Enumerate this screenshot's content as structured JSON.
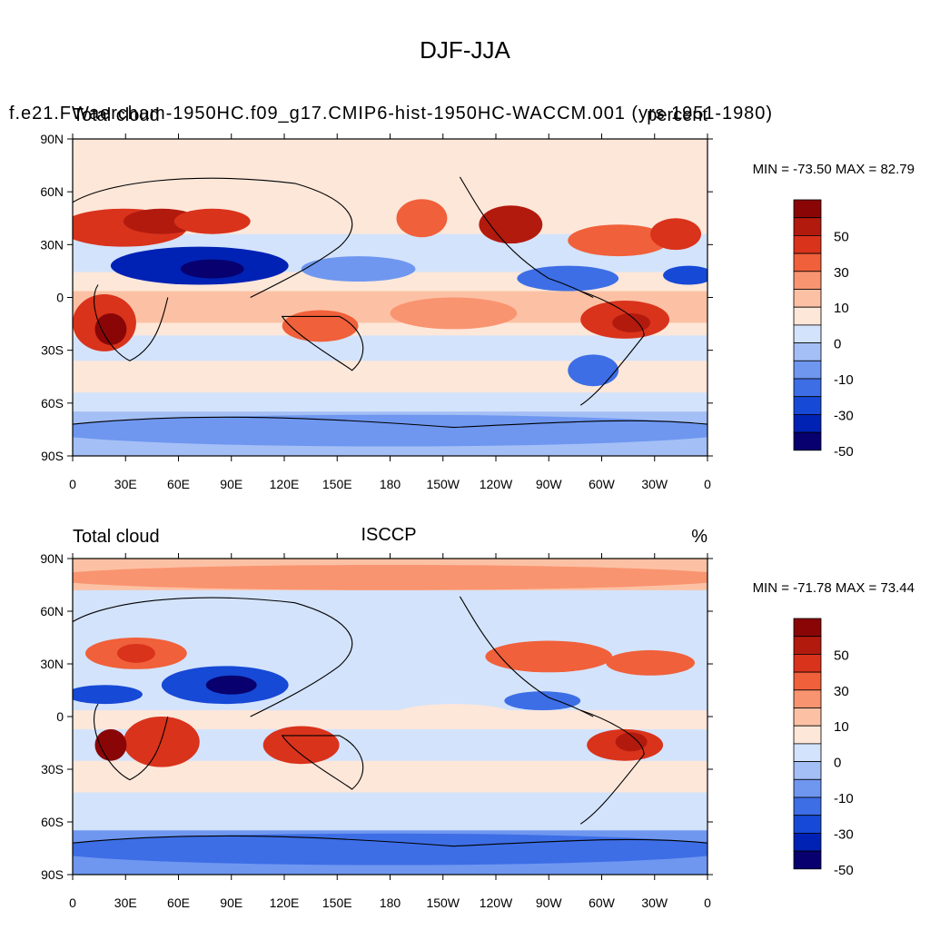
{
  "title": "DJF-JJA",
  "colors": {
    "levels": [
      "#08006e",
      "#0022b4",
      "#1649d6",
      "#3d6ee6",
      "#6f97f0",
      "#a3bff6",
      "#d3e3fb",
      "#fde7d9",
      "#fcc1a4",
      "#f99470",
      "#f0603a",
      "#d9331c",
      "#b21a0e",
      "#8a0606"
    ]
  },
  "panels": [
    {
      "id": "model",
      "left_string": "Total cloud",
      "center_string": "f.e21.FWaercham-1950HC.f09_g17.CMIP6-hist-1950HC-WACCM.001 (yrs 1951-1980)",
      "right_string": "percent",
      "minmax": "MIN = -73.50 MAX =  82.79"
    },
    {
      "id": "obs",
      "left_string": "Total cloud",
      "center_string": "ISCCP",
      "right_string": "%",
      "minmax": "MIN = -71.78 MAX =  73.44"
    }
  ],
  "axes": {
    "lat_labels": [
      "90N",
      "60N",
      "30N",
      "0",
      "30S",
      "60S",
      "90S"
    ],
    "lon_labels": [
      "0",
      "30E",
      "60E",
      "90E",
      "120E",
      "150E",
      "180",
      "150W",
      "120W",
      "90W",
      "60W",
      "30W",
      "0"
    ]
  },
  "colorbar": {
    "labels": [
      "50",
      "30",
      "10",
      "0",
      "-10",
      "-30",
      "-50"
    ]
  }
}
